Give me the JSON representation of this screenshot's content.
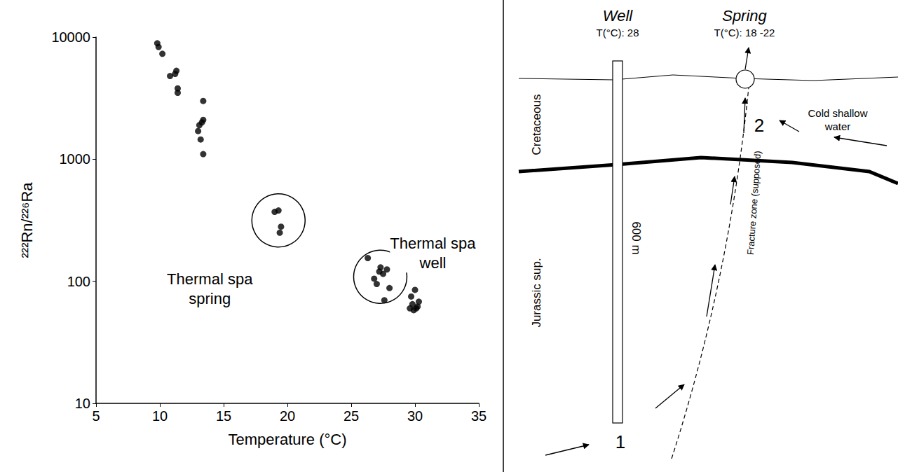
{
  "chart_data": {
    "type": "scatter",
    "x_label": "Temperature (°C)",
    "y_label": "²²²Rn/²²⁶Ra",
    "xlim": [
      5,
      35
    ],
    "xticks": [
      5,
      10,
      15,
      20,
      25,
      30,
      35
    ],
    "ylim": [
      10,
      10000
    ],
    "yticks": [
      10,
      100,
      1000,
      10000
    ],
    "log": "y",
    "grid": false,
    "marker": "circle",
    "series": [
      {
        "color": "#000000",
        "x": [
          9.8,
          9.9,
          10.2,
          10.8,
          11.2,
          11.3,
          11.4,
          11.4,
          13.0,
          13.1,
          13.2,
          13.3,
          13.4,
          13.4,
          13.4
        ],
        "values": [
          8900,
          8300,
          7300,
          4800,
          5000,
          5300,
          3800,
          3500,
          1700,
          1900,
          1450,
          2000,
          2100,
          3000,
          1100
        ]
      },
      {
        "name": "Thermal spa spring",
        "color": "#000000",
        "x": [
          19.0,
          19.3,
          19.5,
          19.4
        ],
        "values": [
          370,
          380,
          280,
          250
        ]
      },
      {
        "name": "Thermal spa well",
        "color": "#000000",
        "x": [
          26.3,
          26.8,
          27.0,
          27.3,
          27.5,
          27.8,
          27.6,
          28.0,
          27.2
        ],
        "values": [
          155,
          105,
          95,
          130,
          115,
          125,
          70,
          88,
          120
        ]
      },
      {
        "color": "#000000",
        "x": [
          29.6,
          29.7,
          29.8,
          30.0,
          30.1,
          30.3,
          30.2,
          29.9
        ],
        "values": [
          60,
          75,
          65,
          85,
          60,
          68,
          62,
          58
        ]
      }
    ]
  },
  "diagram": {
    "well": {
      "label": "Well",
      "temperature": "T(°C): 28",
      "depth": "600 m",
      "marker": "1"
    },
    "spring": {
      "label": "Spring",
      "temperature": "T(°C): 18 -22",
      "marker": "2"
    },
    "layers": {
      "upper": "Cretaceous",
      "lower": "Jurassic sup."
    },
    "fracture": "Fracture zone (supposed)",
    "inflow": "Cold shallow water"
  }
}
